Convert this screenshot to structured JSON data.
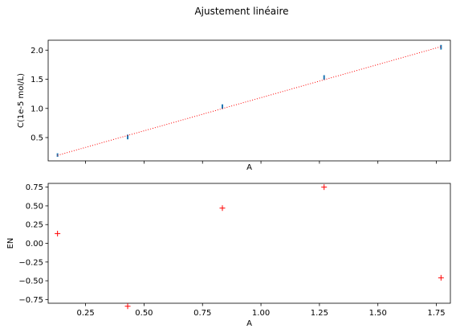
{
  "figure": {
    "title": "Ajustement linéaire"
  },
  "chart_data": [
    {
      "type": "scatter",
      "title": "",
      "xlabel": "A",
      "ylabel": "C(1e-5 mol/L)",
      "xlim": [
        0.09,
        1.81
      ],
      "ylim": [
        0.1,
        2.17
      ],
      "yticks": [
        0.5,
        1.0,
        1.5,
        2.0
      ],
      "ytick_labels": [
        "0.5",
        "1.0",
        "1.5",
        "2.0"
      ],
      "xtick_labels_visible": false,
      "grid": false,
      "series": [
        {
          "kind": "errorbar",
          "color": "#1f77b4",
          "x": [
            0.13,
            0.43,
            0.835,
            1.27,
            1.77
          ],
          "y": [
            0.2,
            0.51,
            1.03,
            1.53,
            2.05
          ],
          "yerr": [
            0.03,
            0.04,
            0.04,
            0.04,
            0.04
          ]
        },
        {
          "kind": "fit-line",
          "color": "#ff0000",
          "style": "dotted",
          "x": [
            0.13,
            1.77
          ],
          "y": [
            0.195,
            2.06
          ]
        }
      ]
    },
    {
      "type": "scatter",
      "title": "",
      "xlabel": "A",
      "ylabel": "EN",
      "xlim": [
        0.09,
        1.81
      ],
      "ylim": [
        -0.8,
        0.8
      ],
      "xticks": [
        0.25,
        0.5,
        0.75,
        1.0,
        1.25,
        1.5,
        1.75
      ],
      "xtick_labels": [
        "0.25",
        "0.50",
        "0.75",
        "1.00",
        "1.25",
        "1.50",
        "1.75"
      ],
      "yticks": [
        -0.75,
        -0.5,
        -0.25,
        0.0,
        0.25,
        0.5,
        0.75
      ],
      "ytick_labels": [
        "−0.75",
        "−0.50",
        "−0.25",
        "0.00",
        "0.25",
        "0.50",
        "0.75"
      ],
      "grid": false,
      "series": [
        {
          "kind": "plus-markers",
          "color": "#ff0000",
          "x": [
            0.13,
            0.43,
            0.835,
            1.27,
            1.77
          ],
          "y": [
            0.13,
            -0.84,
            0.47,
            0.75,
            -0.46
          ]
        }
      ]
    }
  ]
}
